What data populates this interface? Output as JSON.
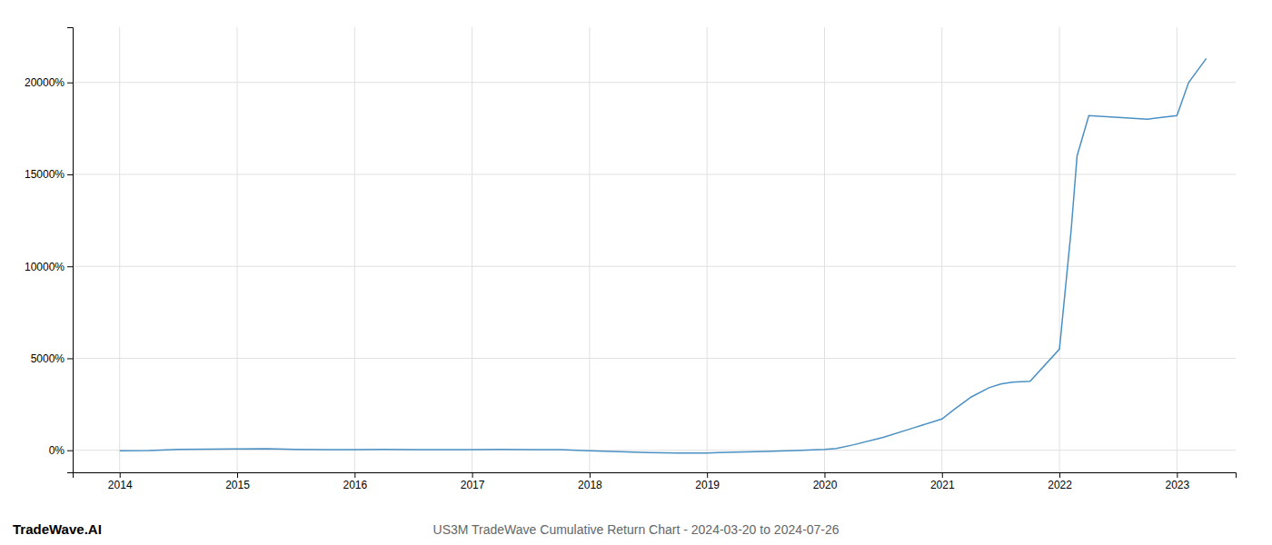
{
  "chart_data": {
    "type": "line",
    "title": "US3M TradeWave Cumulative Return Chart - 2024-03-20 to 2024-07-26",
    "annotations": [
      "TradeWave.AI"
    ],
    "color": "#4a90c4",
    "grid": true,
    "x": [
      2014.0,
      2014.25,
      2014.5,
      2014.75,
      2015.0,
      2015.25,
      2015.5,
      2015.75,
      2016.0,
      2016.25,
      2016.5,
      2016.75,
      2017.0,
      2017.25,
      2017.5,
      2017.75,
      2018.0,
      2018.25,
      2018.5,
      2018.75,
      2019.0,
      2019.1,
      2019.25,
      2019.5,
      2019.75,
      2020.0,
      2020.1,
      2020.25,
      2020.5,
      2020.75,
      2021.0,
      2021.1,
      2021.25,
      2021.4,
      2021.5,
      2021.6,
      2021.75,
      2022.0,
      2022.1,
      2022.15,
      2022.25,
      2022.5,
      2022.75,
      2023.0,
      2023.1,
      2023.25
    ],
    "values": [
      -30,
      -10,
      50,
      60,
      70,
      80,
      50,
      40,
      30,
      50,
      40,
      30,
      40,
      50,
      40,
      30,
      -30,
      -80,
      -120,
      -150,
      -150,
      -130,
      -100,
      -60,
      -20,
      50,
      100,
      300,
      700,
      1200,
      1700,
      2200,
      2900,
      3400,
      3600,
      3700,
      3750,
      5500,
      12000,
      16000,
      18200,
      18100,
      18000,
      18200,
      20000,
      21300
    ],
    "xlim": [
      2013.6,
      2023.5
    ],
    "ylim": [
      -1200,
      23000
    ],
    "xticks": [
      2014,
      2015,
      2016,
      2017,
      2018,
      2019,
      2020,
      2021,
      2022,
      2023
    ],
    "yticks": [
      {
        "value": 0,
        "label": "0%"
      },
      {
        "value": 5000,
        "label": "5000%"
      },
      {
        "value": 10000,
        "label": "10000%"
      },
      {
        "value": 15000,
        "label": "15000%"
      },
      {
        "value": 20000,
        "label": "20000%"
      }
    ]
  }
}
